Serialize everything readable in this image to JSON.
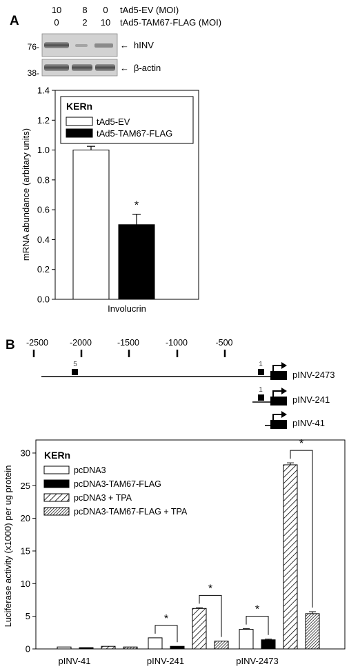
{
  "panel_a": {
    "label": "A",
    "moi_rows": [
      {
        "values": [
          "10",
          "8",
          "0"
        ],
        "label": "tAd5-EV (MOI)"
      },
      {
        "values": [
          "0",
          "2",
          "10"
        ],
        "label": "tAd5-TAM67-FLAG (MOI)"
      }
    ],
    "blots": [
      {
        "marker": "76-",
        "label": "hINV"
      },
      {
        "marker": "38-",
        "label": "β-actin"
      }
    ]
  },
  "panel_b": {
    "label": "B",
    "scale_ticks": [
      "-2500",
      "-2000",
      "-1500",
      "-1000",
      "-500"
    ],
    "constructs": [
      {
        "name": "pINV-2473",
        "sites": [
          "5",
          "1"
        ]
      },
      {
        "name": "pINV-241",
        "sites": [
          "1"
        ]
      },
      {
        "name": "pINV-41",
        "sites": []
      }
    ]
  },
  "chart_data": [
    {
      "type": "bar",
      "categories": [
        "Involucrin"
      ],
      "series": [
        {
          "name": "tAd5-EV",
          "values": [
            1.0
          ],
          "errors": [
            0.025
          ],
          "fill": "#ffffff"
        },
        {
          "name": "tAd5-TAM67-FLAG",
          "values": [
            0.5
          ],
          "errors": [
            0.07
          ],
          "fill": "#000000"
        }
      ],
      "cell_label": "KERn",
      "ylabel": "mRNA abundance (arbitary units)",
      "ylim": [
        0,
        1.4
      ],
      "yticks": [
        "0.0",
        "0.2",
        "0.4",
        "0.6",
        "0.8",
        "1.0",
        "1.2",
        "1.4"
      ],
      "significance": [
        "*"
      ],
      "legend": "top-left",
      "grid": false
    },
    {
      "type": "bar",
      "categories": [
        "pINV-41",
        "pINV-241",
        "pINV-2473"
      ],
      "series": [
        {
          "name": "pcDNA3",
          "values": [
            0.3,
            1.7,
            3.0
          ],
          "errors": [
            0,
            0,
            0.1
          ],
          "fill": "white"
        },
        {
          "name": "pcDNA3-TAM67-FLAG",
          "values": [
            0.2,
            0.4,
            1.4
          ],
          "errors": [
            0,
            0,
            0.1
          ],
          "fill": "black"
        },
        {
          "name": "pcDNA3 + TPA",
          "values": [
            0.4,
            6.2,
            28.2
          ],
          "errors": [
            0,
            0.1,
            0.3
          ],
          "fill": "hatch-wide"
        },
        {
          "name": "pcDNA3-TAM67-FLAG + TPA",
          "values": [
            0.3,
            1.2,
            5.4
          ],
          "errors": [
            0,
            0,
            0.3
          ],
          "fill": "hatch-dense"
        }
      ],
      "cell_label": "KERn",
      "ylabel": "Luciferase activity (x1000) per ug protein",
      "ylim": [
        0,
        32
      ],
      "yticks": [
        "0",
        "5",
        "10",
        "15",
        "20",
        "25",
        "30"
      ],
      "significance_brackets": [
        {
          "category": 1,
          "from_series": 0,
          "to_series": 1,
          "label": "*"
        },
        {
          "category": 1,
          "from_series": 2,
          "to_series": 3,
          "label": "*"
        },
        {
          "category": 2,
          "from_series": 0,
          "to_series": 1,
          "label": "*"
        },
        {
          "category": 2,
          "from_series": 2,
          "to_series": 3,
          "label": "*"
        }
      ],
      "legend": "top-left",
      "grid": false
    }
  ]
}
